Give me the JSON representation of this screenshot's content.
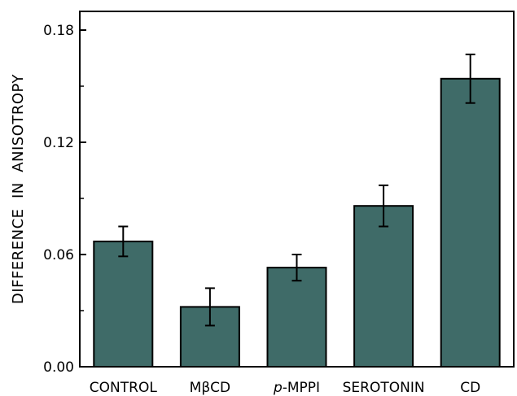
{
  "chart_data": {
    "type": "bar",
    "title": "",
    "xlabel": "",
    "ylabel": "DIFFERENCE  IN  ANISOTROPY",
    "categories": [
      {
        "prefix": "",
        "italic": "",
        "main": "CONTROL"
      },
      {
        "prefix": "M",
        "italic": "",
        "main": "βCD"
      },
      {
        "prefix": "",
        "italic": "p",
        "main": "-MPPI"
      },
      {
        "prefix": "",
        "italic": "",
        "main": "SEROTONIN"
      },
      {
        "prefix": "",
        "italic": "",
        "main": "CD"
      }
    ],
    "values": [
      0.067,
      0.032,
      0.053,
      0.086,
      0.154
    ],
    "errors": [
      0.008,
      0.01,
      0.007,
      0.011,
      0.013
    ],
    "ylim": [
      0,
      0.19
    ],
    "yticks": [
      {
        "value": 0.0,
        "label": "0.00"
      },
      {
        "value": 0.06,
        "label": "0.06"
      },
      {
        "value": 0.12,
        "label": "0.12"
      },
      {
        "value": 0.18,
        "label": "0.18"
      }
    ],
    "bar_color": "#3f6b68",
    "grid": false,
    "legend": "none"
  }
}
